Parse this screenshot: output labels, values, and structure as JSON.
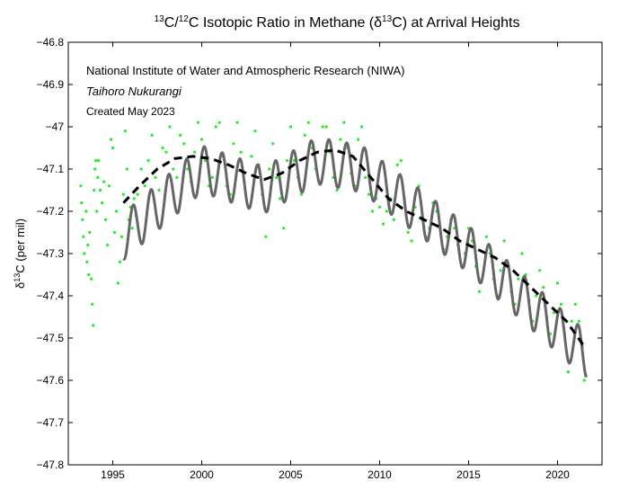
{
  "chart_data": {
    "type": "scatter",
    "title": {
      "sup1": "13",
      "part1": "C/",
      "sup2": "12",
      "part2": "C Isotopic Ratio in Methane (δ",
      "sup3": "13",
      "part3": "C) at Arrival Heights"
    },
    "ylabel": {
      "pre": "δ",
      "sup": "13",
      "post": "C (per mil)"
    },
    "xlabel": "",
    "annotations": {
      "institute": "National Institute of Water and Atmospheric Research (NIWA)",
      "name": "Taihoro Nukurangi",
      "created": "Created May 2023"
    },
    "xlim": [
      1992.5,
      2022.5
    ],
    "ylim": [
      -47.8,
      -46.8
    ],
    "x_ticks": [
      1995,
      2000,
      2005,
      2010,
      2015,
      2020
    ],
    "y_ticks": [
      -46.8,
      -46.9,
      -47,
      -47.1,
      -47.2,
      -47.3,
      -47.4,
      -47.5,
      -47.6,
      -47.7,
      -47.8
    ],
    "y_tick_labels": [
      "−46.8",
      "−46.9",
      "−47",
      "−47.1",
      "−47.2",
      "−47.3",
      "−47.4",
      "−47.5",
      "−47.6",
      "−47.7",
      "−47.8"
    ],
    "colors": {
      "observations": "#22ee22",
      "smoothed": "#666666",
      "trend": "#000000"
    },
    "series": [
      {
        "style": "points",
        "points": [
          [
            1993.2,
            -47.14
          ],
          [
            1993.25,
            -47.18
          ],
          [
            1993.3,
            -47.22
          ],
          [
            1993.35,
            -47.26
          ],
          [
            1993.4,
            -47.3
          ],
          [
            1993.5,
            -47.2
          ],
          [
            1993.55,
            -47.32
          ],
          [
            1993.6,
            -47.28
          ],
          [
            1993.65,
            -47.35
          ],
          [
            1993.7,
            -47.25
          ],
          [
            1993.8,
            -47.36
          ],
          [
            1993.85,
            -47.42
          ],
          [
            1993.9,
            -47.47
          ],
          [
            1993.95,
            -47.15
          ],
          [
            1994.0,
            -47.1
          ],
          [
            1994.05,
            -47.08
          ],
          [
            1994.1,
            -47.2
          ],
          [
            1994.15,
            -47.12
          ],
          [
            1994.2,
            -47.08
          ],
          [
            1994.3,
            -47.15
          ],
          [
            1994.4,
            -47.18
          ],
          [
            1994.5,
            -47.13
          ],
          [
            1994.6,
            -47.22
          ],
          [
            1994.7,
            -47.28
          ],
          [
            1994.8,
            -47.14
          ],
          [
            1994.9,
            -47.03
          ],
          [
            1995.0,
            -47.05
          ],
          [
            1995.1,
            -47.25
          ],
          [
            1995.2,
            -47.2
          ],
          [
            1995.3,
            -47.37
          ],
          [
            1995.4,
            -47.32
          ],
          [
            1995.5,
            -47.26
          ],
          [
            1995.6,
            -47.16
          ],
          [
            1995.7,
            -47.01
          ],
          [
            1995.8,
            -47.1
          ],
          [
            1995.9,
            -47.22
          ],
          [
            1996.0,
            -47.19
          ],
          [
            1996.1,
            -47.24
          ],
          [
            1996.2,
            -47.17
          ],
          [
            1996.3,
            -47.21
          ],
          [
            1996.4,
            -47.16
          ],
          [
            1996.6,
            -47.1
          ],
          [
            1996.8,
            -47.14
          ],
          [
            1997.0,
            -47.08
          ],
          [
            1997.2,
            -47.02
          ],
          [
            1997.4,
            -47.12
          ],
          [
            1997.6,
            -47.15
          ],
          [
            1997.8,
            -47.05
          ],
          [
            1998.0,
            -47.06
          ],
          [
            1998.2,
            -47.0
          ],
          [
            1998.4,
            -47.1
          ],
          [
            1998.6,
            -47.12
          ],
          [
            1998.8,
            -47.02
          ],
          [
            1999.0,
            -47.04
          ],
          [
            1999.2,
            -47.1
          ],
          [
            1999.4,
            -47.13
          ],
          [
            1999.6,
            -47.06
          ],
          [
            1999.8,
            -46.99
          ],
          [
            2000.0,
            -47.03
          ],
          [
            2000.2,
            -47.08
          ],
          [
            2000.4,
            -47.14
          ],
          [
            2000.6,
            -47.12
          ],
          [
            2000.8,
            -47.0
          ],
          [
            2001.0,
            -46.99
          ],
          [
            2001.2,
            -47.07
          ],
          [
            2001.4,
            -47.14
          ],
          [
            2001.6,
            -47.16
          ],
          [
            2001.8,
            -47.04
          ],
          [
            2002.0,
            -46.99
          ],
          [
            2002.2,
            -47.06
          ],
          [
            2002.4,
            -47.13
          ],
          [
            2002.6,
            -47.19
          ],
          [
            2002.8,
            -47.07
          ],
          [
            2003.0,
            -47.01
          ],
          [
            2003.2,
            -47.09
          ],
          [
            2003.4,
            -47.16
          ],
          [
            2003.6,
            -47.26
          ],
          [
            2003.8,
            -47.1
          ],
          [
            2004.0,
            -47.04
          ],
          [
            2004.2,
            -47.12
          ],
          [
            2004.4,
            -47.17
          ],
          [
            2004.6,
            -47.24
          ],
          [
            2004.8,
            -47.08
          ],
          [
            2005.0,
            -47.0
          ],
          [
            2005.2,
            -47.08
          ],
          [
            2005.4,
            -47.12
          ],
          [
            2005.6,
            -47.16
          ],
          [
            2005.8,
            -47.02
          ],
          [
            2006.0,
            -46.99
          ],
          [
            2006.2,
            -47.05
          ],
          [
            2006.4,
            -47.1
          ],
          [
            2006.6,
            -47.13
          ],
          [
            2006.8,
            -47.0
          ],
          [
            2007.0,
            -47.0
          ],
          [
            2007.2,
            -47.06
          ],
          [
            2007.4,
            -47.12
          ],
          [
            2007.6,
            -47.15
          ],
          [
            2007.8,
            -47.03
          ],
          [
            2008.0,
            -46.99
          ],
          [
            2008.2,
            -47.05
          ],
          [
            2008.4,
            -47.11
          ],
          [
            2008.6,
            -47.14
          ],
          [
            2008.8,
            -47.03
          ],
          [
            2009.0,
            -47.0
          ],
          [
            2009.2,
            -47.12
          ],
          [
            2009.4,
            -47.16
          ],
          [
            2009.6,
            -47.2
          ],
          [
            2009.8,
            -47.17
          ],
          [
            2010.0,
            -47.19
          ],
          [
            2010.2,
            -47.23
          ],
          [
            2010.4,
            -47.2
          ],
          [
            2010.6,
            -47.17
          ],
          [
            2010.8,
            -47.22
          ],
          [
            2011.0,
            -47.09
          ],
          [
            2011.2,
            -47.08
          ],
          [
            2011.4,
            -47.17
          ],
          [
            2011.6,
            -47.25
          ],
          [
            2011.8,
            -47.27
          ],
          [
            2012.0,
            -47.19
          ],
          [
            2012.2,
            -47.14
          ],
          [
            2012.4,
            -47.22
          ],
          [
            2012.6,
            -47.26
          ],
          [
            2012.8,
            -47.24
          ],
          [
            2013.0,
            -47.18
          ],
          [
            2013.2,
            -47.2
          ],
          [
            2013.4,
            -47.24
          ],
          [
            2013.6,
            -47.29
          ],
          [
            2013.8,
            -47.26
          ],
          [
            2014.0,
            -47.22
          ],
          [
            2014.2,
            -47.24
          ],
          [
            2014.4,
            -47.28
          ],
          [
            2014.6,
            -47.33
          ],
          [
            2014.8,
            -47.3
          ],
          [
            2015.0,
            -47.24
          ],
          [
            2015.2,
            -47.27
          ],
          [
            2015.4,
            -47.33
          ],
          [
            2015.6,
            -47.39
          ],
          [
            2015.8,
            -47.35
          ],
          [
            2016.0,
            -47.26
          ],
          [
            2016.2,
            -47.3
          ],
          [
            2016.4,
            -47.36
          ],
          [
            2016.6,
            -47.4
          ],
          [
            2016.8,
            -47.34
          ],
          [
            2017.0,
            -47.27
          ],
          [
            2017.2,
            -47.33
          ],
          [
            2017.4,
            -47.39
          ],
          [
            2017.6,
            -47.42
          ],
          [
            2017.8,
            -47.36
          ],
          [
            2018.0,
            -47.3
          ],
          [
            2018.2,
            -47.35
          ],
          [
            2018.4,
            -47.41
          ],
          [
            2018.6,
            -47.46
          ],
          [
            2018.8,
            -47.4
          ],
          [
            2019.0,
            -47.34
          ],
          [
            2019.2,
            -47.38
          ],
          [
            2019.4,
            -47.45
          ],
          [
            2019.6,
            -47.49
          ],
          [
            2019.8,
            -47.44
          ],
          [
            2020.0,
            -47.37
          ],
          [
            2020.2,
            -47.42
          ],
          [
            2020.4,
            -47.49
          ],
          [
            2020.6,
            -47.58
          ],
          [
            2020.8,
            -47.46
          ],
          [
            2021.0,
            -47.42
          ],
          [
            2021.2,
            -47.46
          ],
          [
            2021.4,
            -47.52
          ],
          [
            2021.5,
            -47.6
          ],
          [
            2021.6,
            -47.59
          ]
        ]
      },
      {
        "style": "smoothed",
        "x_start": 1995.6,
        "x_end": 2021.6,
        "segments": [
          [
            1995.6,
            -47.26
          ],
          [
            2000.0,
            -47.1
          ],
          [
            2003.5,
            -47.15
          ],
          [
            2006.5,
            -47.08
          ],
          [
            2009.0,
            -47.1
          ],
          [
            2015.0,
            -47.29
          ],
          [
            2021.6,
            -47.54
          ]
        ],
        "amplitude": 0.055,
        "peak_offset": 0.15
      },
      {
        "style": "trend",
        "points": [
          [
            1995.6,
            -47.18
          ],
          [
            1996.5,
            -47.14
          ],
          [
            1997.5,
            -47.1
          ],
          [
            1998.5,
            -47.075
          ],
          [
            1999.5,
            -47.07
          ],
          [
            2000.5,
            -47.075
          ],
          [
            2001.5,
            -47.09
          ],
          [
            2002.5,
            -47.11
          ],
          [
            2003.5,
            -47.125
          ],
          [
            2004.5,
            -47.11
          ],
          [
            2005.5,
            -47.08
          ],
          [
            2006.5,
            -47.06
          ],
          [
            2007.5,
            -47.055
          ],
          [
            2008.5,
            -47.07
          ],
          [
            2009.5,
            -47.12
          ],
          [
            2010.5,
            -47.17
          ],
          [
            2011.5,
            -47.2
          ],
          [
            2012.5,
            -47.22
          ],
          [
            2013.5,
            -47.24
          ],
          [
            2014.5,
            -47.27
          ],
          [
            2015.5,
            -47.29
          ],
          [
            2016.5,
            -47.31
          ],
          [
            2017.5,
            -47.34
          ],
          [
            2018.5,
            -47.38
          ],
          [
            2019.5,
            -47.42
          ],
          [
            2020.5,
            -47.46
          ],
          [
            2021.5,
            -47.52
          ]
        ]
      }
    ],
    "grid": false,
    "legend": "none"
  }
}
